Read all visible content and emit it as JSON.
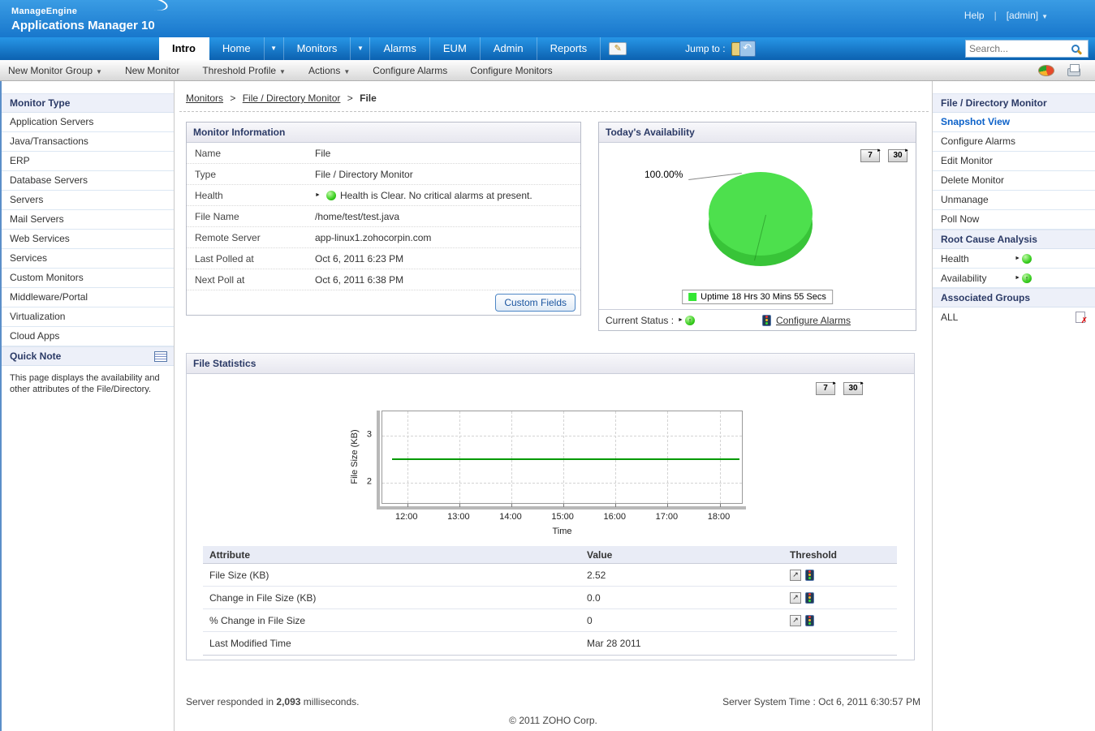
{
  "header": {
    "logo_line1": "ManageEngine",
    "logo_line2": "Applications Manager 10",
    "help_label": "Help",
    "divider": "|",
    "admin_label": "[admin]"
  },
  "nav": {
    "tabs": [
      {
        "label": "Intro",
        "active": true,
        "dropdown": false
      },
      {
        "label": "Home",
        "active": false,
        "dropdown": true
      },
      {
        "label": "Monitors",
        "active": false,
        "dropdown": true
      },
      {
        "label": "Alarms",
        "active": false,
        "dropdown": false
      },
      {
        "label": "EUM",
        "active": false,
        "dropdown": false
      },
      {
        "label": "Admin",
        "active": false,
        "dropdown": false
      },
      {
        "label": "Reports",
        "active": false,
        "dropdown": false
      }
    ],
    "jump_to_label": "Jump to :",
    "search_placeholder": "Search..."
  },
  "toolbar": {
    "items": [
      {
        "label": "New Monitor Group",
        "dropdown": true
      },
      {
        "label": "New Monitor",
        "dropdown": false
      },
      {
        "label": "Threshold Profile",
        "dropdown": true
      },
      {
        "label": "Actions",
        "dropdown": true
      },
      {
        "label": "Configure Alarms",
        "dropdown": false
      },
      {
        "label": "Configure Monitors",
        "dropdown": false
      }
    ]
  },
  "left_sidebar": {
    "title": "Monitor Type",
    "items": [
      "Application Servers",
      "Java/Transactions",
      "ERP",
      "Database Servers",
      "Servers",
      "Mail Servers",
      "Web Services",
      "Services",
      "Custom Monitors",
      "Middleware/Portal",
      "Virtualization",
      "Cloud Apps"
    ],
    "quick_note_title": "Quick Note",
    "quick_note_text": "This page displays the availability and other attributes of the File/Directory."
  },
  "breadcrumb": {
    "part1": "Monitors",
    "part2": "File / Directory Monitor",
    "part3": "File",
    "separator": ">"
  },
  "monitor_info": {
    "title": "Monitor Information",
    "rows": [
      {
        "label": "Name",
        "value": "File"
      },
      {
        "label": "Type",
        "value": "File / Directory Monitor"
      },
      {
        "label": "Health",
        "value": "Health is Clear. No critical alarms at present."
      },
      {
        "label": "File Name",
        "value": "/home/test/test.java"
      },
      {
        "label": "Remote Server",
        "value": "app-linux1.zohocorpin.com"
      },
      {
        "label": "Last Polled at",
        "value": "Oct 6, 2011 6:23 PM"
      },
      {
        "label": "Next Poll at",
        "value": "Oct 6, 2011 6:38 PM"
      }
    ],
    "custom_fields_label": "Custom Fields"
  },
  "availability": {
    "title": "Today's Availability",
    "button_7": "7",
    "button_30": "30",
    "current_status_label": "Current Status :",
    "configure_alarms_label": "Configure Alarms"
  },
  "file_stats": {
    "title": "File Statistics",
    "button_7": "7",
    "button_30": "30",
    "table": {
      "headers": [
        "Attribute",
        "Value",
        "Threshold"
      ],
      "rows": [
        {
          "attribute": "File Size (KB)",
          "value": "2.52",
          "has_threshold": true
        },
        {
          "attribute": "Change in File Size (KB)",
          "value": "0.0",
          "has_threshold": true
        },
        {
          "attribute": "% Change in File Size",
          "value": "0",
          "has_threshold": true
        },
        {
          "attribute": "Last Modified Time",
          "value": "Mar 28 2011",
          "has_threshold": false
        }
      ]
    }
  },
  "right_sidebar": {
    "title": "File / Directory Monitor",
    "items": [
      {
        "label": "Snapshot View",
        "active": true
      },
      {
        "label": "Configure Alarms",
        "active": false
      },
      {
        "label": "Edit Monitor",
        "active": false
      },
      {
        "label": "Delete Monitor",
        "active": false
      },
      {
        "label": "Unmanage",
        "active": false
      },
      {
        "label": "Poll Now",
        "active": false
      }
    ],
    "rca_title": "Root Cause Analysis",
    "rca_health_label": "Health",
    "rca_availability_label": "Availability",
    "groups_title": "Associated Groups",
    "group_name": "ALL"
  },
  "footer": {
    "response_prefix": "Server responded in",
    "response_value": "2,093",
    "response_suffix": "milliseconds.",
    "server_time": "Server System Time : Oct 6, 2011 6:30:57 PM",
    "copyright": "© 2011 ZOHO Corp."
  },
  "colors": {
    "header_blue": "#1b7ed2",
    "uptime_green": "#44dd44",
    "chart_line_green": "#009900",
    "active_link_blue": "#0b61c9"
  },
  "chart_data": [
    {
      "type": "pie",
      "title": "Today's Availability",
      "slices": [
        {
          "label": "Uptime",
          "value": 100.0,
          "color": "#4de04d"
        }
      ],
      "data_label": "100.00%",
      "legend": "Uptime 18 Hrs 30 Mins 55 Secs",
      "legend_position": "bottom"
    },
    {
      "type": "line",
      "title": "File Statistics",
      "xlabel": "Time",
      "ylabel": "File Size (KB)",
      "x_range_hours": [
        11.52,
        18.46
      ],
      "y_range": [
        1.53,
        3.52
      ],
      "xticks": [
        {
          "h": 12,
          "label": "12:00"
        },
        {
          "h": 13,
          "label": "13:00"
        },
        {
          "h": 14,
          "label": "14:00"
        },
        {
          "h": 15,
          "label": "15:00"
        },
        {
          "h": 16,
          "label": "16:00"
        },
        {
          "h": 17,
          "label": "17:00"
        },
        {
          "h": 18,
          "label": "18:00"
        }
      ],
      "yticks": [
        {
          "v": 3,
          "label": "3"
        },
        {
          "v": 2,
          "label": "2"
        }
      ],
      "grid": true,
      "series": [
        {
          "name": "File Size (KB)",
          "value": 2.52,
          "x_start_hour": 11.7,
          "x_end_hour": 18.38,
          "color": "#009900"
        }
      ]
    }
  ]
}
